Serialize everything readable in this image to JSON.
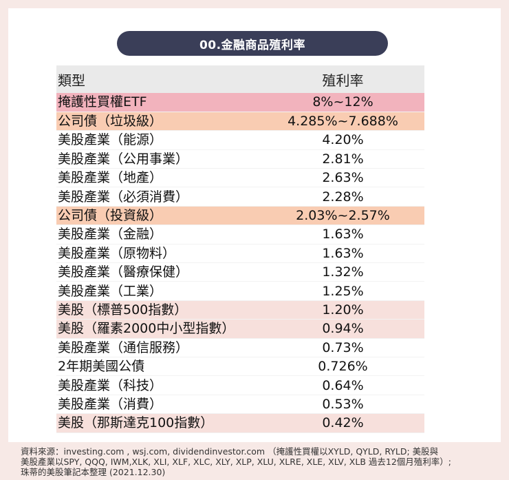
{
  "title": "00.金融商品殖利率",
  "table": {
    "headers": [
      "類型",
      "殖利率"
    ],
    "rows": [
      {
        "type": "掩護性買權ETF",
        "yield": "8%~12%",
        "color": "#f2b3bd"
      },
      {
        "type": "公司債（垃圾級）",
        "yield": "4.285%~7.688%",
        "color": "#f9ccb2"
      },
      {
        "type": "美股產業（能源）",
        "yield": "4.20%",
        "color": "#ffffff"
      },
      {
        "type": "美股產業（公用事業）",
        "yield": "2.81%",
        "color": "#ffffff"
      },
      {
        "type": "美股產業（地產）",
        "yield": "2.63%",
        "color": "#ffffff"
      },
      {
        "type": "美股產業（必須消費）",
        "yield": "2.28%",
        "color": "#ffffff"
      },
      {
        "type": "公司債（投資級）",
        "yield": "2.03%~2.57%",
        "color": "#f9ccb2"
      },
      {
        "type": "美股產業（金融）",
        "yield": "1.63%",
        "color": "#ffffff"
      },
      {
        "type": "美股產業（原物料）",
        "yield": "1.63%",
        "color": "#ffffff"
      },
      {
        "type": "美股產業（醫療保健）",
        "yield": "1.32%",
        "color": "#ffffff"
      },
      {
        "type": "美股產業（工業）",
        "yield": "1.25%",
        "color": "#ffffff"
      },
      {
        "type": "美股（標普500指數）",
        "yield": "1.20%",
        "color": "#f7e0dc"
      },
      {
        "type": "美股（羅素2000中小型指數）",
        "yield": "0.94%",
        "color": "#f7e0dc"
      },
      {
        "type": "美股產業（通信服務）",
        "yield": "0.73%",
        "color": "#ffffff"
      },
      {
        "type": "2年期美國公債",
        "yield": "0.726%",
        "color": "#ffffff"
      },
      {
        "type": "美股產業（科技）",
        "yield": "0.64%",
        "color": "#ffffff"
      },
      {
        "type": "美股產業（消費）",
        "yield": "0.53%",
        "color": "#ffffff"
      },
      {
        "type": "美股（那斯達克100指數）",
        "yield": "0.42%",
        "color": "#f7e0dc"
      }
    ]
  },
  "footnote": {
    "line1": "資料來源：investing.com , wsj.com, dividendinvestor.com （掩護性買權以XYLD, QYLD, RYLD; 美股與",
    "line2": "美股產業以SPY, QQQ, IWM,XLK, XLI, XLF, XLC, XLY, XLP, XLU, XLRE, XLE, XLV, XLB 過去12個月殖利率）;",
    "line3": "珠蒂的美股筆記本整理 (2021.12.30)"
  }
}
